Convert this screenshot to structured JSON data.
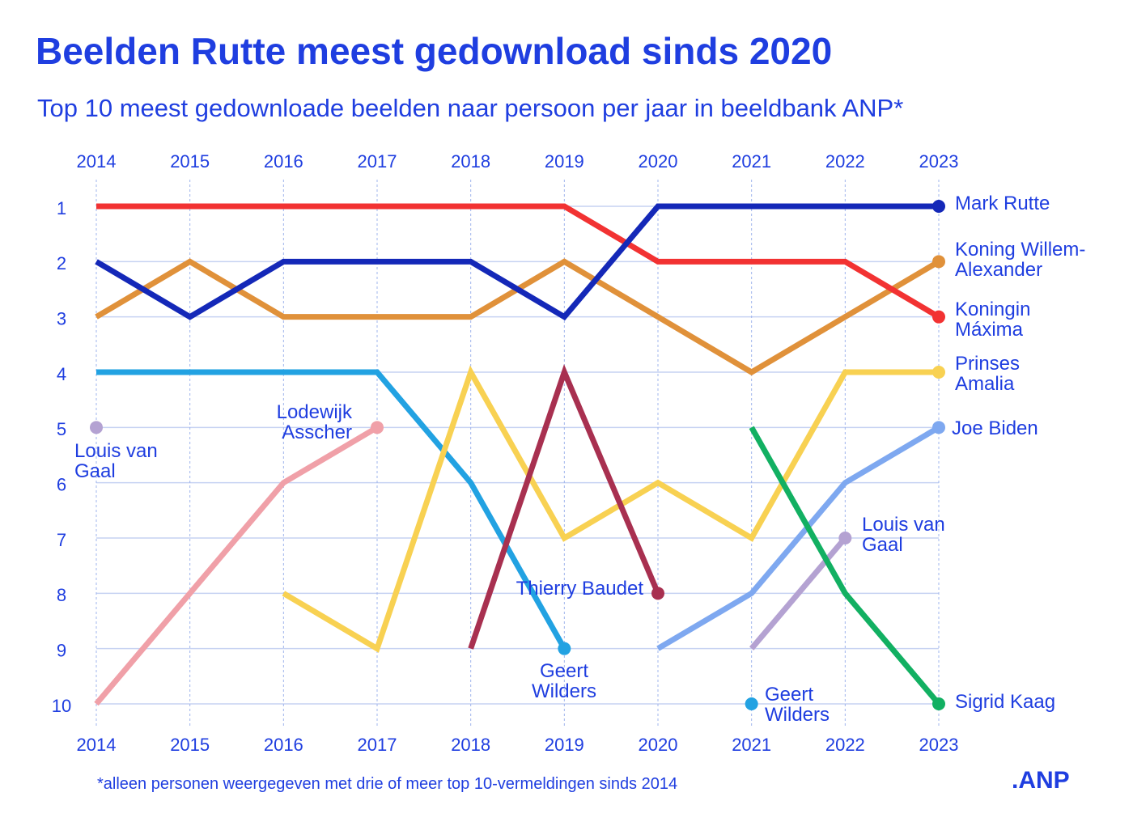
{
  "chart_data": {
    "type": "bump",
    "title": "Beelden Rutte meest gedownload sinds 2020",
    "subtitle": "Top 10 meest gedownloade beelden naar persoon per jaar in beeldbank ANP*",
    "footnote": "*alleen personen weergegeven met drie of meer top 10-vermeldingen sinds 2014",
    "logo": ".ANP",
    "categories": [
      "2014",
      "2015",
      "2016",
      "2017",
      "2018",
      "2019",
      "2020",
      "2021",
      "2022",
      "2023"
    ],
    "ylim": [
      10,
      1
    ],
    "yticks": [
      1,
      2,
      3,
      4,
      5,
      6,
      7,
      8,
      9,
      10
    ],
    "grid": true,
    "series": [
      {
        "name": "Mark Rutte",
        "color": "#1428b8",
        "values": [
          2,
          3,
          2,
          2,
          2,
          3,
          1,
          1,
          1,
          1
        ]
      },
      {
        "name": "Koning Willem-Alexander",
        "color": "#e0913a",
        "values": [
          3,
          2,
          3,
          3,
          3,
          2,
          3,
          4,
          3,
          2
        ]
      },
      {
        "name": "Koningin Máxima",
        "color": "#f23232",
        "values": [
          1,
          1,
          1,
          1,
          1,
          1,
          2,
          2,
          2,
          3
        ]
      },
      {
        "name": "Prinses Amalia",
        "color": "#f8d152",
        "values": [
          null,
          null,
          8,
          9,
          4,
          7,
          6,
          7,
          4,
          4
        ]
      },
      {
        "name": "Joe Biden",
        "color": "#7ea8f0",
        "values": [
          null,
          null,
          null,
          null,
          null,
          null,
          9,
          8,
          6,
          5
        ]
      },
      {
        "name": "Sigrid Kaag",
        "color": "#12b062",
        "values": [
          null,
          null,
          null,
          null,
          null,
          null,
          null,
          5,
          8,
          10
        ]
      },
      {
        "name": "Geert Wilders",
        "color": "#22a2e2",
        "values": [
          4,
          4,
          4,
          4,
          6,
          9,
          null,
          10,
          null,
          null
        ]
      },
      {
        "name": "Louis van Gaal",
        "color": "#b4a2d2",
        "values": [
          5,
          null,
          null,
          null,
          null,
          null,
          null,
          9,
          7,
          null
        ]
      },
      {
        "name": "Lodewijk Asscher",
        "color": "#f0a0a8",
        "values": [
          10,
          8,
          6,
          5,
          null,
          null,
          null,
          null,
          null,
          null
        ]
      },
      {
        "name": "Thierry Baudet",
        "color": "#a83050",
        "values": [
          null,
          null,
          null,
          null,
          9,
          4,
          8,
          null,
          null,
          null
        ]
      }
    ]
  }
}
